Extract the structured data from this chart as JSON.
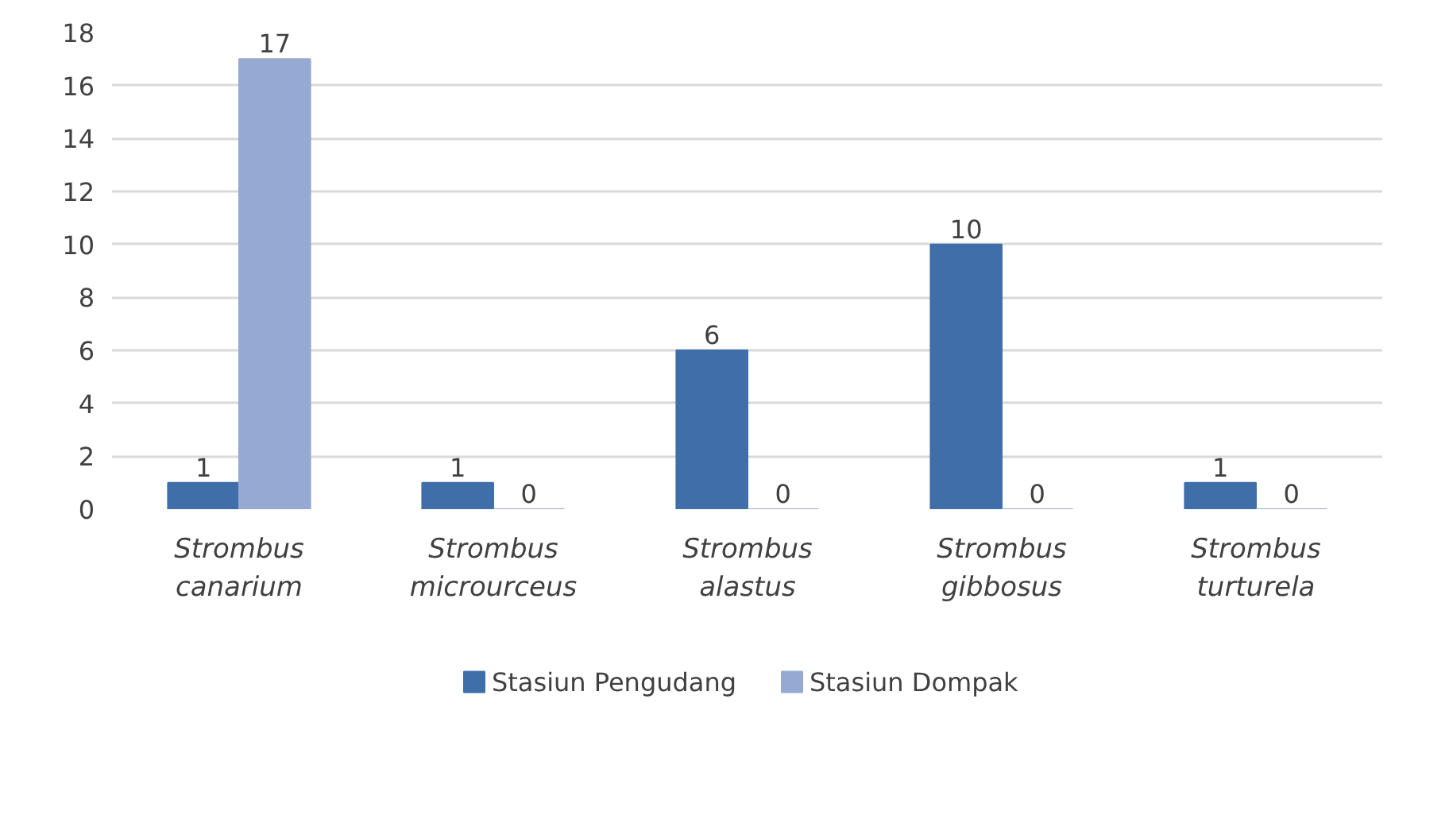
{
  "chart_data": {
    "type": "bar",
    "categories": [
      "Strombus\ncanarium",
      "Strombus\nmicrourceus",
      "Strombus\nalastus",
      "Strombus\ngibbosus",
      "Strombus\nturturela"
    ],
    "series": [
      {
        "name": "Stasiun Pengudang",
        "color": "#3f6ea8",
        "values": [
          1,
          1,
          6,
          10,
          1
        ]
      },
      {
        "name": "Stasiun Dompak",
        "color": "#95a9d2",
        "values": [
          17,
          0,
          0,
          0,
          0
        ]
      }
    ],
    "ylim": [
      0,
      18
    ],
    "yticks": [
      0,
      2,
      4,
      6,
      8,
      10,
      12,
      14,
      16,
      18
    ],
    "grid": "y",
    "legend": "bottom",
    "data_labels": true
  }
}
